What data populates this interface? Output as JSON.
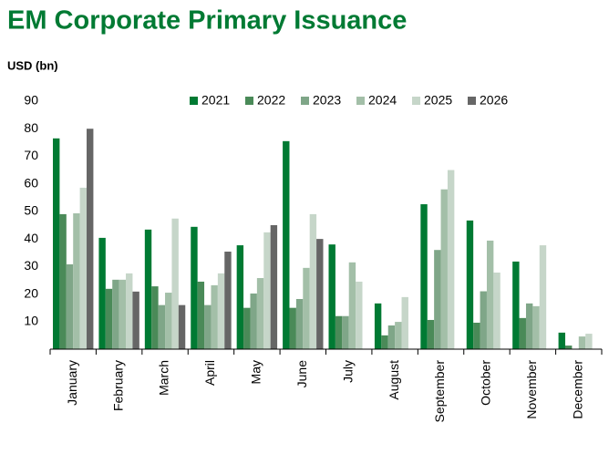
{
  "chart_data": {
    "type": "bar",
    "title": "EM Corporate Primary Issuance",
    "y_axis_label": "USD (bn)",
    "categories": [
      "January",
      "February",
      "March",
      "April",
      "May",
      "June",
      "July",
      "August",
      "September",
      "October",
      "November",
      "December"
    ],
    "series": [
      {
        "name": "2021",
        "color": "#007a33",
        "values": [
          76.5,
          40.4,
          43.4,
          44.4,
          37.7,
          75.5,
          38,
          16.6,
          52.6,
          46.7,
          31.8,
          6
        ]
      },
      {
        "name": "2022",
        "color": "#4a8a58",
        "values": [
          49,
          21.9,
          22.8,
          24.5,
          15,
          15,
          12,
          5,
          10.6,
          9.6,
          11.3,
          1.3
        ]
      },
      {
        "name": "2023",
        "color": "#7fa688",
        "values": [
          30.8,
          25.2,
          16,
          16,
          20.2,
          18.2,
          12,
          8.6,
          36,
          21,
          16.6,
          null
        ]
      },
      {
        "name": "2024",
        "color": "#a3bfa8",
        "values": [
          49.3,
          25.2,
          20.5,
          23.2,
          25.8,
          29.5,
          31.5,
          9.9,
          58,
          39.4,
          15.6,
          4.6
        ]
      },
      {
        "name": "2025",
        "color": "#c6d6c9",
        "values": [
          58.6,
          27.5,
          47.4,
          27.5,
          42.4,
          49,
          24.5,
          18.9,
          65,
          27.8,
          37.7,
          5.6
        ]
      },
      {
        "name": "2026",
        "color": "#666666",
        "values": [
          80,
          20.9,
          16,
          35.4,
          45,
          40,
          null,
          null,
          null,
          null,
          null,
          null
        ]
      }
    ],
    "ylim": [
      0,
      90
    ],
    "yticks": [
      10,
      20,
      30,
      40,
      50,
      60,
      70,
      80,
      90
    ],
    "grid": false,
    "legend": "top"
  }
}
